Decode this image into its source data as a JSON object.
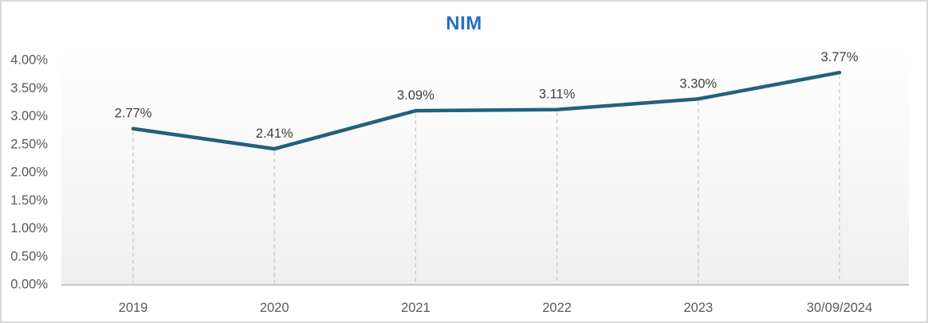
{
  "chart": {
    "title": "NIM"
  },
  "chart_data": {
    "type": "line",
    "title": "NIM",
    "categories": [
      "2019",
      "2020",
      "2021",
      "2022",
      "2023",
      "30/09/2024"
    ],
    "series": [
      {
        "name": "NIM",
        "values": [
          2.77,
          2.41,
          3.09,
          3.11,
          3.3,
          3.77
        ]
      }
    ],
    "data_labels": [
      "2.77%",
      "2.41%",
      "3.09%",
      "3.11%",
      "3.30%",
      "3.77%"
    ],
    "xlabel": "",
    "ylabel": "",
    "y_axis": {
      "min": 0,
      "max": 4,
      "step": 0.5,
      "tick_labels": [
        "0.00%",
        "0.50%",
        "1.00%",
        "1.50%",
        "2.00%",
        "2.50%",
        "3.00%",
        "3.50%",
        "4.00%"
      ]
    },
    "ylim": [
      0,
      4
    ],
    "legend": "none",
    "grid": {
      "horizontal": false,
      "vertical_dashed_at_each_point": true
    },
    "markers": "none"
  },
  "colors": {
    "title": "#1F70C4",
    "line": "#22617E",
    "data_label": "#3F3F3F",
    "axis_label": "#595959",
    "gridline": "#C9C9C9",
    "axis_line": "#C6C6C6",
    "plot_bg_top": "#FFFFFF",
    "plot_bg_bottom": "#EFEFF0",
    "frame_border": "#D9D9D9"
  }
}
